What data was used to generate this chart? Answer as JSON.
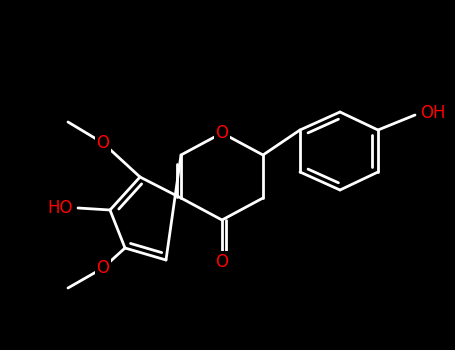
{
  "background": "#000000",
  "bond_color": "#ffffff",
  "hetero_color": "#ff0000",
  "lw": 2.0,
  "figsize": [
    4.55,
    3.5
  ],
  "dpi": 100,
  "xlim": [
    0,
    455
  ],
  "ylim": [
    0,
    350
  ]
}
